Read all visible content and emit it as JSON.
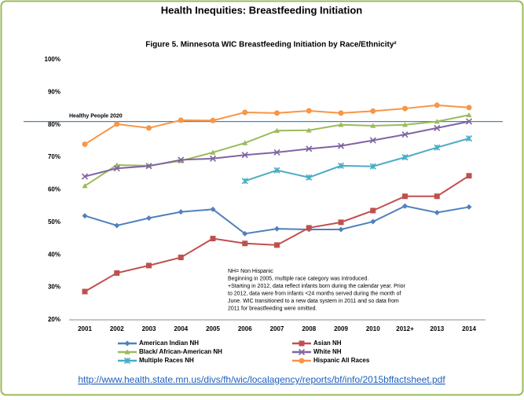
{
  "chart_data": {
    "type": "line",
    "header": "Health Inequities: Breastfeeding Initiation",
    "title": "Figure 5.  Minnesota WIC Breastfeeding Initiation by Race/Ethnicity²",
    "categories": [
      "2001",
      "2002",
      "2003",
      "2004",
      "2005",
      "2006",
      "2007",
      "2008",
      "2009",
      "2010",
      "2012+",
      "2013",
      "2014"
    ],
    "ylim": [
      20,
      100
    ],
    "yticks": [
      {
        "value": 20,
        "label": "20%"
      },
      {
        "value": 30,
        "label": "30%"
      },
      {
        "value": 40,
        "label": "40%"
      },
      {
        "value": 50,
        "label": "50%"
      },
      {
        "value": 60,
        "label": "60%"
      },
      {
        "value": 70,
        "label": "70%"
      },
      {
        "value": 80,
        "label": "80%"
      },
      {
        "value": 90,
        "label": "90%"
      },
      {
        "value": 100,
        "label": "100%"
      }
    ],
    "reference_line": {
      "value": 81,
      "label": "Healthy People 2020",
      "color": "#4f81bd"
    },
    "series": [
      {
        "name": "American Indian NH",
        "color": "#4f81bd",
        "marker": "diamond",
        "values": [
          52,
          49,
          51.3,
          53.2,
          54,
          46.5,
          48,
          47.8,
          47.8,
          50.2,
          55,
          53,
          54.7
        ]
      },
      {
        "name": "Asian NH",
        "color": "#c0504d",
        "marker": "square",
        "values": [
          28.7,
          34.4,
          36.7,
          39.2,
          45,
          43.5,
          43,
          48.3,
          50,
          53.6,
          58,
          58,
          64.3
        ]
      },
      {
        "name": "Black/ African-American NH",
        "color": "#9bbb59",
        "marker": "triangle",
        "values": [
          61.2,
          67.6,
          67.4,
          68.9,
          71.5,
          74.4,
          78.2,
          78.3,
          80,
          79.7,
          80,
          81,
          83
        ]
      },
      {
        "name": "White NH",
        "color": "#8064a2",
        "marker": "x",
        "values": [
          64.1,
          66.6,
          67.3,
          69.2,
          69.6,
          70.7,
          71.5,
          72.6,
          73.5,
          75.2,
          77,
          79,
          81
        ]
      },
      {
        "name": "Multiple Races NH",
        "color": "#4bacc6",
        "marker": "star",
        "values": [
          null,
          null,
          null,
          null,
          null,
          62.7,
          66,
          63.8,
          67.4,
          67.2,
          70,
          73,
          75.8
        ]
      },
      {
        "name": "Hispanic All Races",
        "color": "#f79646",
        "marker": "circle",
        "values": [
          74,
          80.2,
          79,
          81.4,
          81.3,
          83.8,
          83.6,
          84.3,
          83.6,
          84.2,
          85,
          86,
          85.3
        ]
      }
    ],
    "annotations": [
      "NH= Non Hispanic",
      "Beginning in 2005, multiple race category was introduced.",
      "+Starting in 2012, data reflect infants born during the calendar year. Prior",
      "to 2012, data were from infants <24 months served during the month of",
      "June. WIC transitioned to a new data system in 2011 and so data from",
      "2011 for breastfeeding were omitted."
    ],
    "source_url": "http://www.health.state.mn.us/divs/fh/wic/localagency/reports/bf/info/2015bffactsheet.pdf"
  }
}
